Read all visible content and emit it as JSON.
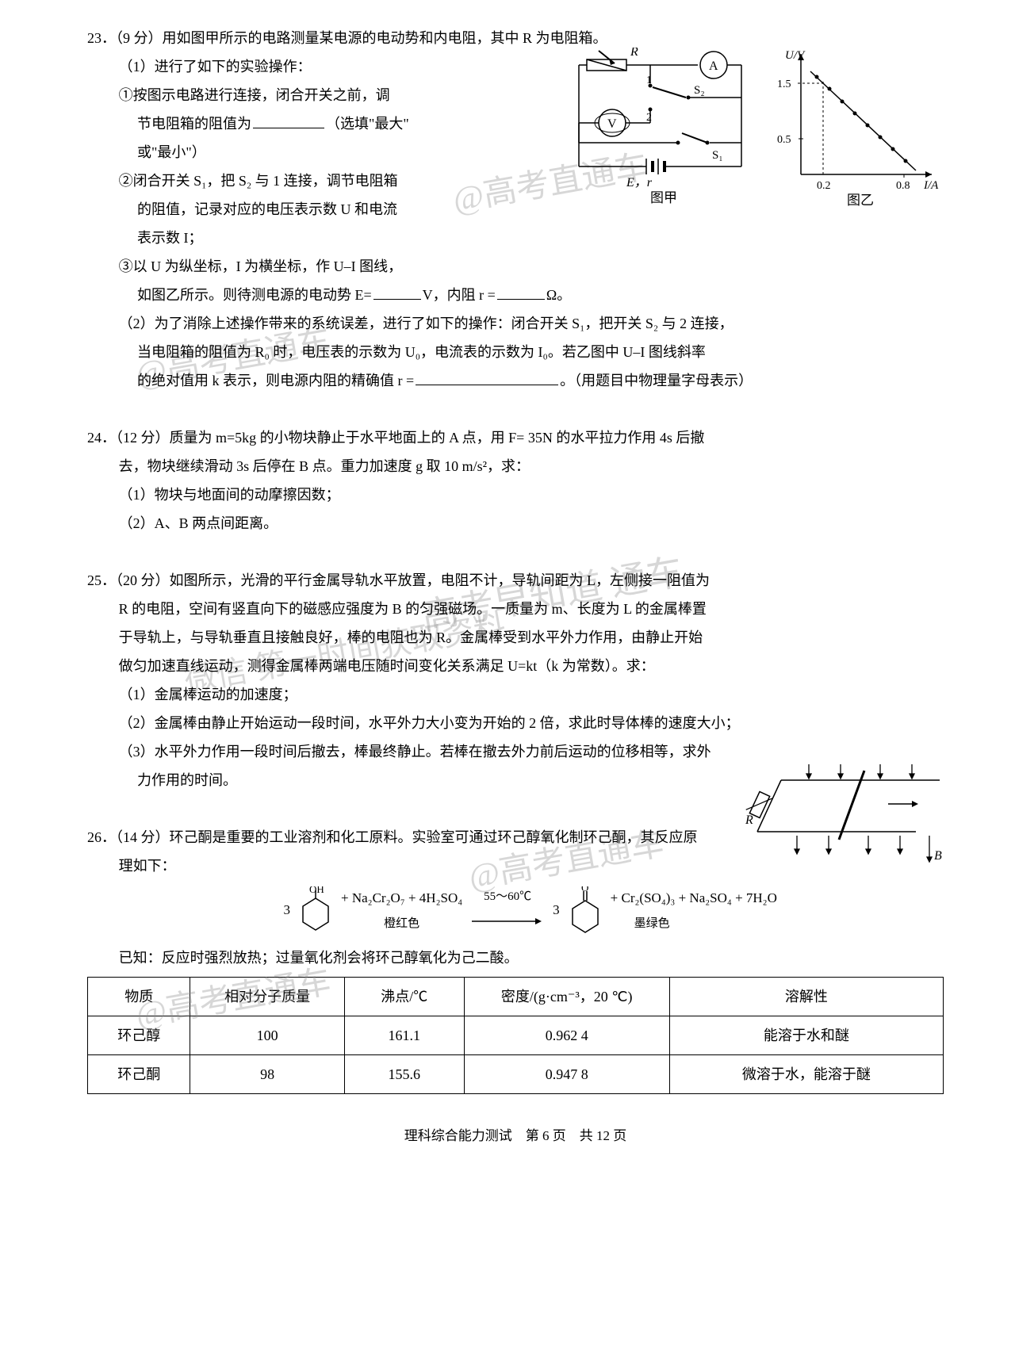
{
  "q23": {
    "num": "23．",
    "points": "（9 分）",
    "intro": "用如图甲所示的电路测量某电源的电动势和内电阻，其中 R 为电阻箱。",
    "p1": "（1）进行了如下的实验操作：",
    "s1a": "①按图示电路进行连接，闭合开关之前，调",
    "s1b": "节电阻箱的阻值为",
    "s1c": "（选填\"最大\"",
    "s1d": "或\"最小\"）",
    "s2a": "②闭合开关 S₁，把 S₂ 与 1 连接，调节电阻箱",
    "s2b": "的阻值，记录对应的电压表示数 U 和电流",
    "s2c": "表示数 I；",
    "s3a": "③以 U 为纵坐标，I 为横坐标，作 U–I 图线，",
    "s3b_a": "如图乙所示。则待测电源的电动势 E=",
    "s3b_b": "V，内阻 r =",
    "s3b_c": "Ω。",
    "p2a": "（2）为了消除上述操作带来的系统误差，进行了如下的操作：闭合开关 S₁，把开关 S₂ 与 2 连接，",
    "p2b": "当电阻箱的阻值为 R₀ 时，电压表的示数为 U₀，电流表的示数为 I₀。若乙图中 U–I 图线斜率",
    "p2c_a": "的绝对值用 k 表示，则电源内阻的精确值 r =",
    "p2c_b": "。（用题目中物理量字母表示）",
    "circuit": {
      "labels": {
        "R": "R",
        "A": "A",
        "V": "V",
        "S1": "S₁",
        "S2": "S₂",
        "one": "1",
        "two": "2",
        "Er": "E，r",
        "cap": "图甲"
      }
    },
    "graph": {
      "ylabel": "U/V",
      "xlabel": "I/A",
      "yticks": [
        0.5,
        1.5
      ],
      "xticks": [
        0.2,
        0.8
      ],
      "points": [
        [
          0.15,
          1.58
        ],
        [
          0.25,
          1.4
        ],
        [
          0.35,
          1.2
        ],
        [
          0.45,
          1.0
        ],
        [
          0.55,
          0.8
        ],
        [
          0.65,
          0.6
        ],
        [
          0.75,
          0.4
        ],
        [
          0.85,
          0.22
        ]
      ],
      "line_color": "#000",
      "point_color": "#000",
      "xlim": [
        0,
        0.95
      ],
      "ylim": [
        0,
        1.75
      ],
      "cap": "图乙"
    }
  },
  "q24": {
    "num": "24．",
    "points": "（12 分）",
    "l1": "质量为 m=5kg 的小物块静止于水平地面上的 A 点，用 F= 35N 的水平拉力作用 4s 后撤",
    "l2": "去，物块继续滑动 3s 后停在 B 点。重力加速度 g 取 10 m/s²，求：",
    "p1": "（1）物块与地面间的动摩擦因数；",
    "p2": "（2）A、B 两点间距离。"
  },
  "q25": {
    "num": "25．",
    "points": "（20 分）",
    "l1": "如图所示，光滑的平行金属导轨水平放置，电阻不计，导轨间距为 L，左侧接一阻值为",
    "l2": "R 的电阻，空间有竖直向下的磁感应强度为 B 的匀强磁场。一质量为 m、长度为 L 的金属棒置",
    "l3": "于导轨上，与导轨垂直且接触良好，棒的电阻也为 R。金属棒受到水平外力作用，由静止开始",
    "l4": "做匀加速直线运动，测得金属棒两端电压随时间变化关系满足 U=kt（k 为常数）。求：",
    "p1": "（1）金属棒运动的加速度；",
    "p2": "（2）金属棒由静止开始运动一段时间，水平外力大小变为开始的 2 倍，求此时导体棒的速度大小；",
    "p3": "（3）水平外力作用一段时间后撤去，棒最终静止。若棒在撤去外力前后运动的位移相等，求外",
    "p3b": "力作用的时间。",
    "diagram": {
      "R": "R",
      "B": "B"
    }
  },
  "q26": {
    "num": "26．",
    "points": "（14 分）",
    "l1": "环己酮是重要的工业溶剂和化工原料。实验室可通过环己醇氧化制环己酮，其反应原",
    "l2": "理如下：",
    "react": {
      "coef": "3",
      "plus1": "+ Na₂Cr₂O₇ + 4H₂SO₄",
      "col1": "橙红色",
      "cond": "55～60℃",
      "prod": "+ Cr₂(SO₄)₃ + Na₂SO₄ + 7H₂O",
      "col2": "墨绿色",
      "oh": "OH",
      "o": "O"
    },
    "known": "已知：反应时强烈放热；过量氧化剂会将环己醇氧化为己二酸。",
    "table": {
      "headers": [
        "物质",
        "相对分子质量",
        "沸点/℃",
        "密度/(g·cm⁻³，20 ℃)",
        "溶解性"
      ],
      "rows": [
        [
          "环己醇",
          "100",
          "161.1",
          "0.962 4",
          "能溶于水和醚"
        ],
        [
          "环己酮",
          "98",
          "155.6",
          "0.947 8",
          "微溶于水，能溶于醚"
        ]
      ],
      "col_widths": [
        "12%",
        "18%",
        "14%",
        "24%",
        "32%"
      ]
    }
  },
  "footer": "理科综合能力测试　第 6 页　共 12 页",
  "watermarks": [
    "@高考直通车",
    "@高考直通车",
    "高考早知道 通车",
    "微信 第一时间获取资料",
    "@高考直通车",
    "@高考直通车"
  ]
}
